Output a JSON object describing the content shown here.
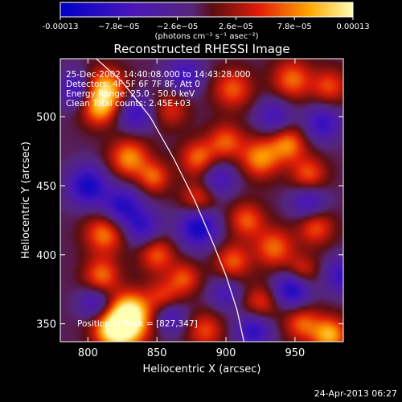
{
  "chart_data": {
    "type": "heatmap",
    "title": "Reconstructed RHESSI Image",
    "xlabel": "Heliocentric X (arcsec)",
    "ylabel": "Heliocentric Y (arcsec)",
    "xlim": [
      780,
      985
    ],
    "ylim": [
      337,
      542
    ],
    "x_ticks": [
      800,
      850,
      900,
      950
    ],
    "y_ticks": [
      350,
      400,
      450,
      500
    ],
    "colorbar": {
      "label": "(photons cm⁻² s⁻¹ asec⁻²)",
      "range": [
        -0.00013,
        0.00013
      ],
      "tick_values": [
        -0.00013,
        -7.8e-05,
        -2.6e-05,
        2.6e-05,
        7.8e-05,
        0.00013
      ],
      "tick_labels": [
        "-0.00013",
        "−7.8e−05",
        "−2.6e−05",
        "2.6e−05",
        "7.8e−05",
        "0.00013"
      ]
    },
    "annotations": [
      "25-Dec-2002 14:40:08.000 to 14:43:28.000",
      "Detectors: 4F 5F 6F 7F 8F, Att 0",
      "Energy Range: 25.0 - 50.0 keV",
      "Clean     Total counts: 2.45E+03"
    ],
    "peak_label": "Position of Peak = [827,347]",
    "peak": {
      "x": 827,
      "y": 347
    },
    "limb_curve": [
      [
        806,
        542
      ],
      [
        825,
        525
      ],
      [
        845,
        500
      ],
      [
        862,
        470
      ],
      [
        877,
        440
      ],
      [
        890,
        410
      ],
      [
        900,
        385
      ],
      [
        908,
        360
      ],
      [
        913,
        337
      ]
    ],
    "blobs": [
      {
        "x": 827,
        "y": 347,
        "amp": 1.0,
        "sigma": 11
      },
      {
        "x": 831,
        "y": 360,
        "amp": 0.75,
        "sigma": 10
      },
      {
        "x": 815,
        "y": 345,
        "amp": 0.55,
        "sigma": 9
      },
      {
        "x": 812,
        "y": 520,
        "amp": 0.9,
        "sigma": 10
      },
      {
        "x": 808,
        "y": 505,
        "amp": 0.6,
        "sigma": 9
      },
      {
        "x": 830,
        "y": 470,
        "amp": 0.7,
        "sigma": 10
      },
      {
        "x": 848,
        "y": 456,
        "amp": 0.55,
        "sigma": 8
      },
      {
        "x": 812,
        "y": 415,
        "amp": 0.65,
        "sigma": 10
      },
      {
        "x": 810,
        "y": 385,
        "amp": 0.6,
        "sigma": 9
      },
      {
        "x": 850,
        "y": 400,
        "amp": 0.55,
        "sigma": 9
      },
      {
        "x": 870,
        "y": 383,
        "amp": 0.5,
        "sigma": 8
      },
      {
        "x": 855,
        "y": 370,
        "amp": 0.45,
        "sigma": 9
      },
      {
        "x": 880,
        "y": 470,
        "amp": 0.6,
        "sigma": 9
      },
      {
        "x": 900,
        "y": 482,
        "amp": 0.55,
        "sigma": 9
      },
      {
        "x": 925,
        "y": 470,
        "amp": 0.7,
        "sigma": 10
      },
      {
        "x": 945,
        "y": 480,
        "amp": 0.65,
        "sigma": 9
      },
      {
        "x": 960,
        "y": 458,
        "amp": 0.55,
        "sigma": 9
      },
      {
        "x": 905,
        "y": 520,
        "amp": 0.55,
        "sigma": 10
      },
      {
        "x": 948,
        "y": 527,
        "amp": 0.6,
        "sigma": 10
      },
      {
        "x": 975,
        "y": 522,
        "amp": 0.5,
        "sigma": 9
      },
      {
        "x": 880,
        "y": 440,
        "amp": 0.5,
        "sigma": 9
      },
      {
        "x": 915,
        "y": 425,
        "amp": 0.55,
        "sigma": 9
      },
      {
        "x": 935,
        "y": 405,
        "amp": 0.6,
        "sigma": 10
      },
      {
        "x": 905,
        "y": 395,
        "amp": 0.55,
        "sigma": 9
      },
      {
        "x": 965,
        "y": 420,
        "amp": 0.55,
        "sigma": 9
      },
      {
        "x": 955,
        "y": 388,
        "amp": 0.45,
        "sigma": 8
      },
      {
        "x": 925,
        "y": 365,
        "amp": 0.45,
        "sigma": 9
      },
      {
        "x": 955,
        "y": 350,
        "amp": 0.55,
        "sigma": 9
      },
      {
        "x": 975,
        "y": 342,
        "amp": 0.8,
        "sigma": 9
      },
      {
        "x": 885,
        "y": 345,
        "amp": 0.5,
        "sigma": 9
      },
      {
        "x": 860,
        "y": 505,
        "amp": 0.4,
        "sigma": 9
      },
      {
        "x": 800,
        "y": 450,
        "amp": -0.8,
        "sigma": 10
      },
      {
        "x": 825,
        "y": 435,
        "amp": -0.7,
        "sigma": 10
      },
      {
        "x": 792,
        "y": 520,
        "amp": -0.6,
        "sigma": 9
      },
      {
        "x": 835,
        "y": 502,
        "amp": -0.55,
        "sigma": 9
      },
      {
        "x": 840,
        "y": 420,
        "amp": -0.55,
        "sigma": 9
      },
      {
        "x": 880,
        "y": 420,
        "amp": -0.85,
        "sigma": 10
      },
      {
        "x": 870,
        "y": 530,
        "amp": -0.55,
        "sigma": 9
      },
      {
        "x": 895,
        "y": 455,
        "amp": -0.5,
        "sigma": 9
      },
      {
        "x": 935,
        "y": 500,
        "amp": -0.5,
        "sigma": 9
      },
      {
        "x": 970,
        "y": 495,
        "amp": -0.6,
        "sigma": 9
      },
      {
        "x": 960,
        "y": 438,
        "amp": -0.55,
        "sigma": 9
      },
      {
        "x": 948,
        "y": 375,
        "amp": -0.8,
        "sigma": 9
      },
      {
        "x": 920,
        "y": 345,
        "amp": -0.65,
        "sigma": 9
      },
      {
        "x": 805,
        "y": 365,
        "amp": -0.5,
        "sigma": 8
      },
      {
        "x": 860,
        "y": 355,
        "amp": -0.5,
        "sigma": 8
      },
      {
        "x": 985,
        "y": 385,
        "amp": -0.6,
        "sigma": 9
      },
      {
        "x": 900,
        "y": 372,
        "amp": -0.45,
        "sigma": 8
      }
    ]
  },
  "footer_timestamp": "24-Apr-2013 06:27"
}
